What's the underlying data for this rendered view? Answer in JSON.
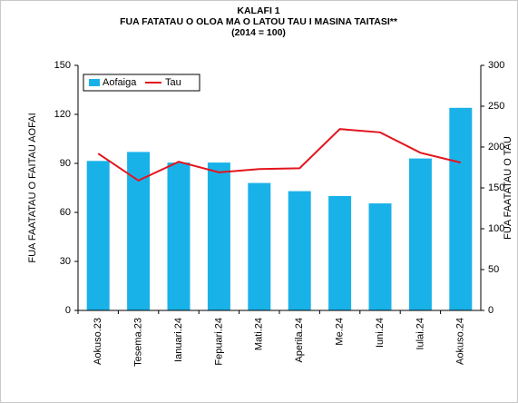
{
  "chart_data": {
    "type": "bar_line",
    "title": "KALAFI 1",
    "subtitle": "FUA FATATAU O OLOA MA O LATOU TAU I MASINA TAITASI**",
    "note": "(2014 = 100)",
    "ylabel": "FUA FAATATAU O FAITAU AOFAI",
    "y2label": "FUA FAATATAU O TAU",
    "categories": [
      "Aokuso.23",
      "Tesema.23",
      "Ianuari.24",
      "Fepuari.24",
      "Mati.24",
      "Aperila.24",
      "Me.24",
      "Iuni.24",
      "Iulai.24",
      "Aokuso.24"
    ],
    "series": [
      {
        "name": "Aofaiga",
        "type": "bar",
        "color": "#19b2e8",
        "values": [
          91.5,
          97,
          90.5,
          90.5,
          78,
          73,
          70,
          65.5,
          93,
          124
        ]
      },
      {
        "name": "Tau",
        "type": "line",
        "axis": "y2",
        "color": "#e3141c",
        "values": [
          192,
          159,
          182,
          169,
          173,
          174,
          222,
          218,
          193,
          181
        ]
      }
    ],
    "ylim": [
      0,
      150
    ],
    "yticks": [
      0,
      30,
      60,
      90,
      120,
      150
    ],
    "y2lim": [
      0,
      300
    ],
    "y2ticks": [
      0,
      50,
      100,
      150,
      200,
      250,
      300
    ],
    "legend": "top-left"
  }
}
